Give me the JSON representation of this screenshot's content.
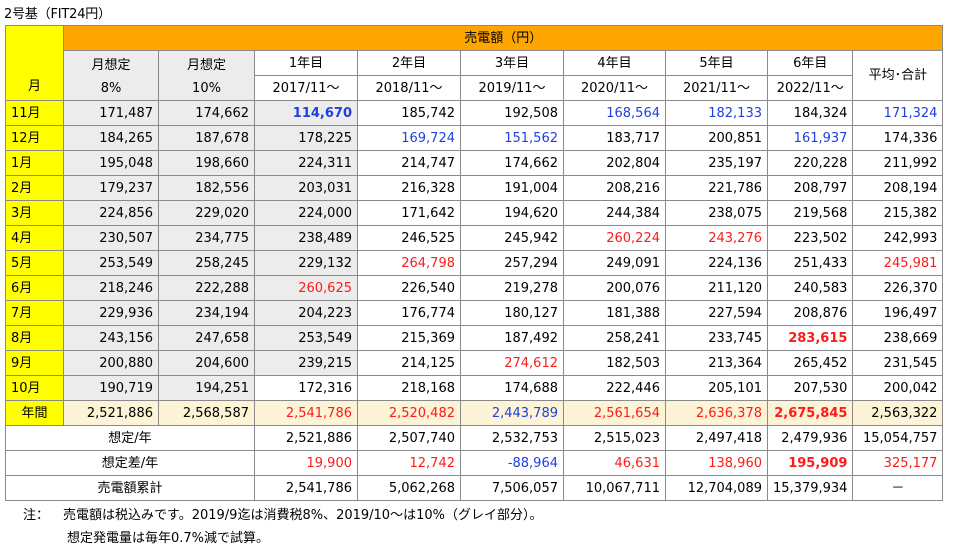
{
  "title": "2号基（FIT24円）",
  "header": {
    "group_title": "売電額（円）",
    "month_label": "月",
    "cols": [
      {
        "l1": "月想定",
        "l2": "8%"
      },
      {
        "l1": "月想定",
        "l2": "10%"
      },
      {
        "l1": "1年目",
        "l2": "2017/11～"
      },
      {
        "l1": "2年目",
        "l2": "2018/11～"
      },
      {
        "l1": "3年目",
        "l2": "2019/11～"
      },
      {
        "l1": "4年目",
        "l2": "2020/11～"
      },
      {
        "l1": "5年目",
        "l2": "2021/11～"
      },
      {
        "l1": "6年目",
        "l2": "2022/11～"
      }
    ],
    "avg_label": "平均･合計"
  },
  "rows": [
    {
      "month": "11月",
      "cells": [
        "171,487",
        "174,662",
        "114,670",
        "185,742",
        "192,508",
        "168,564",
        "182,133",
        "184,324",
        "171,324"
      ],
      "styles": [
        "",
        "",
        "blue bold",
        "",
        "",
        "blue",
        "blue",
        "",
        "blue"
      ]
    },
    {
      "month": "12月",
      "cells": [
        "184,265",
        "187,678",
        "178,225",
        "169,724",
        "151,562",
        "183,717",
        "200,851",
        "161,937",
        "174,336"
      ],
      "styles": [
        "",
        "",
        "",
        "blue",
        "blue",
        "",
        "",
        "blue",
        ""
      ]
    },
    {
      "month": "1月",
      "cells": [
        "195,048",
        "198,660",
        "224,311",
        "214,747",
        "174,662",
        "202,804",
        "235,197",
        "220,228",
        "211,992"
      ],
      "styles": [
        "",
        "",
        "",
        "",
        "",
        "",
        "",
        "",
        ""
      ]
    },
    {
      "month": "2月",
      "cells": [
        "179,237",
        "182,556",
        "203,031",
        "216,328",
        "191,004",
        "208,216",
        "221,786",
        "208,797",
        "208,194"
      ],
      "styles": [
        "",
        "",
        "",
        "",
        "",
        "",
        "",
        "",
        ""
      ]
    },
    {
      "month": "3月",
      "cells": [
        "224,856",
        "229,020",
        "224,000",
        "171,642",
        "194,620",
        "244,384",
        "238,075",
        "219,568",
        "215,382"
      ],
      "styles": [
        "",
        "",
        "",
        "",
        "",
        "",
        "",
        "",
        ""
      ]
    },
    {
      "month": "4月",
      "cells": [
        "230,507",
        "234,775",
        "238,489",
        "246,525",
        "245,942",
        "260,224",
        "243,276",
        "223,502",
        "242,993"
      ],
      "styles": [
        "",
        "",
        "",
        "",
        "",
        "red",
        "red",
        "",
        ""
      ]
    },
    {
      "month": "5月",
      "cells": [
        "253,549",
        "258,245",
        "229,132",
        "264,798",
        "257,294",
        "249,091",
        "224,136",
        "251,433",
        "245,981"
      ],
      "styles": [
        "",
        "",
        "",
        "red",
        "",
        "",
        "",
        "",
        "red"
      ]
    },
    {
      "month": "6月",
      "cells": [
        "218,246",
        "222,288",
        "260,625",
        "226,540",
        "219,278",
        "200,076",
        "211,120",
        "240,583",
        "226,370"
      ],
      "styles": [
        "",
        "",
        "red",
        "",
        "",
        "",
        "",
        "",
        ""
      ]
    },
    {
      "month": "7月",
      "cells": [
        "229,936",
        "234,194",
        "204,223",
        "176,774",
        "180,127",
        "181,388",
        "227,594",
        "208,876",
        "196,497"
      ],
      "styles": [
        "",
        "",
        "",
        "",
        "",
        "",
        "",
        "",
        ""
      ]
    },
    {
      "month": "8月",
      "cells": [
        "243,156",
        "247,658",
        "253,549",
        "215,369",
        "187,492",
        "258,241",
        "233,745",
        "283,615",
        "238,669"
      ],
      "styles": [
        "",
        "",
        "",
        "",
        "",
        "",
        "",
        "red bold",
        ""
      ]
    },
    {
      "month": "9月",
      "cells": [
        "200,880",
        "204,600",
        "239,215",
        "214,125",
        "274,612",
        "182,503",
        "213,364",
        "265,452",
        "231,545"
      ],
      "styles": [
        "",
        "",
        "",
        "",
        "red",
        "",
        "",
        "",
        ""
      ]
    },
    {
      "month": "10月",
      "cells": [
        "190,719",
        "194,251",
        "172,316",
        "218,168",
        "174,688",
        "222,446",
        "205,101",
        "207,530",
        "200,042"
      ],
      "styles": [
        "",
        "",
        "",
        "",
        "",
        "",
        "",
        "",
        ""
      ]
    }
  ],
  "annual": {
    "label": "年間",
    "cells": [
      "2,521,886",
      "2,568,587",
      "2,541,786",
      "2,520,482",
      "2,443,789",
      "2,561,654",
      "2,636,378",
      "2,675,845",
      "2,563,322"
    ],
    "styles": [
      "",
      "",
      "red",
      "red",
      "blue",
      "red",
      "red",
      "red bold",
      ""
    ]
  },
  "summary": [
    {
      "label": "想定/年",
      "cells": [
        "2,521,886",
        "2,507,740",
        "2,532,753",
        "2,515,023",
        "2,497,418",
        "2,479,936",
        "15,054,757"
      ],
      "styles": [
        "",
        "",
        "",
        "",
        "",
        "",
        ""
      ]
    },
    {
      "label": "想定差/年",
      "cells": [
        "19,900",
        "12,742",
        "-88,964",
        "46,631",
        "138,960",
        "195,909",
        "325,177"
      ],
      "styles": [
        "red",
        "red",
        "blue",
        "red",
        "red",
        "red bold",
        "red"
      ]
    },
    {
      "label": "売電額累計",
      "cells": [
        "2,541,786",
        "5,062,268",
        "7,506,057",
        "10,067,711",
        "12,704,089",
        "15,379,934",
        "－"
      ],
      "styles": [
        "",
        "",
        "",
        "",
        "",
        "",
        ""
      ]
    }
  ],
  "notes": {
    "prefix": "注：",
    "line1": "売電額は税込みです。2019/9迄は消費税8%、2019/10～は10%（グレイ部分）。",
    "line2": "想定発電量は毎年0.7%減で試算。"
  }
}
